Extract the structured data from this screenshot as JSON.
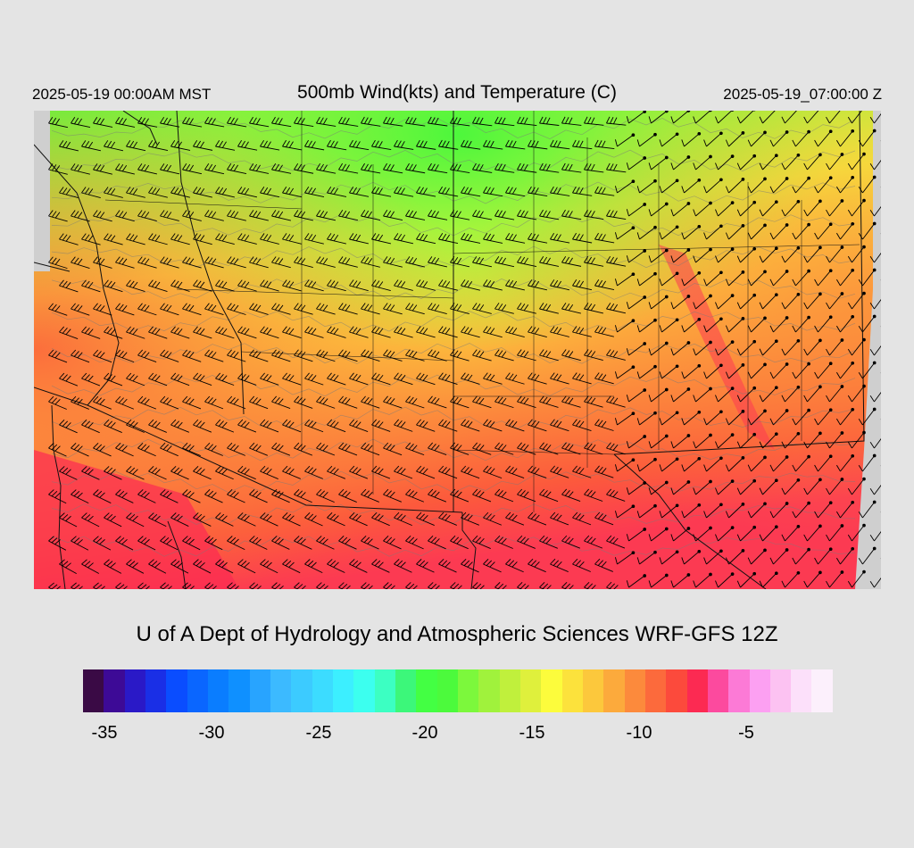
{
  "header": {
    "local_time": "2025-05-19 00:00AM MST",
    "title": "500mb Wind(kts) and Temperature (C)",
    "valid_time": "2025-05-19_07:00:00 Z"
  },
  "credit": "U of A Dept of Hydrology and Atmospheric Sciences WRF-GFS 12Z",
  "colorbar": {
    "colors": [
      "#3a0a45",
      "#3d0a96",
      "#2a19c7",
      "#1a2fe6",
      "#0a4dff",
      "#0a66ff",
      "#0a7dff",
      "#0f90ff",
      "#28a4ff",
      "#3cbaff",
      "#3ccbff",
      "#3cdcff",
      "#3cefff",
      "#3cffef",
      "#3cffc2",
      "#3cf77a",
      "#43ff43",
      "#4cfa3c",
      "#7cf83c",
      "#a0f23c",
      "#c0f03c",
      "#dff03c",
      "#fcfc3c",
      "#fce23c",
      "#fcc83c",
      "#fcaa3c",
      "#fc8a3c",
      "#fc6a3c",
      "#fc4a3c",
      "#fc2a52",
      "#fc4a9e",
      "#fc7ad6",
      "#fca0f2",
      "#fcc2f2",
      "#fce0fa",
      "#fcf0fc"
    ],
    "tick_labels": [
      "-35",
      "-30",
      "-25",
      "-20",
      "-15",
      "-10",
      "-5"
    ]
  },
  "map": {
    "field": "500mb temperature shading with wind barbs",
    "temp_range_c": [
      -35,
      -1
    ]
  }
}
